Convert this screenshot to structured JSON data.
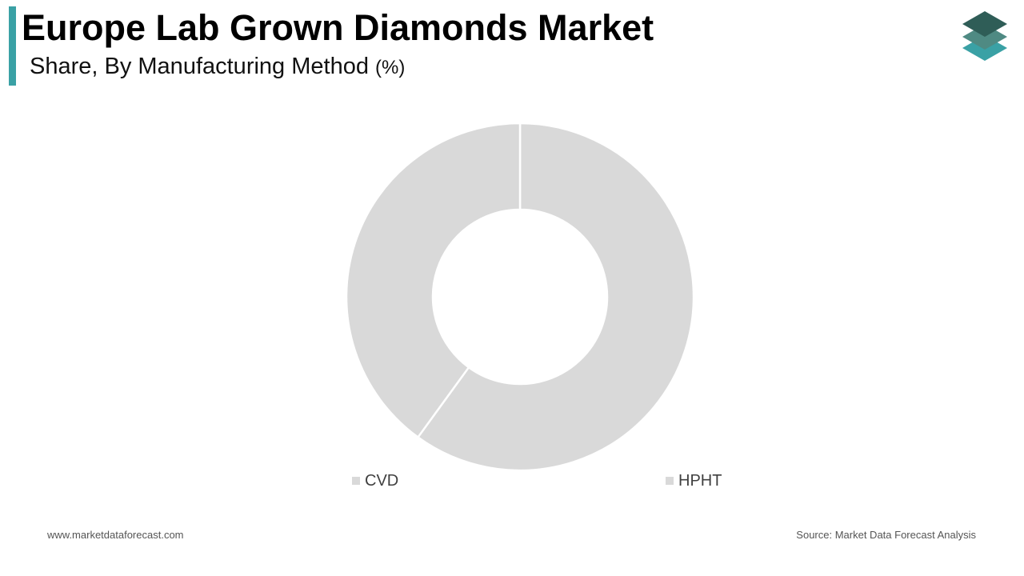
{
  "header": {
    "title": "Europe Lab Grown Diamonds Market",
    "subtitle": "Share, By Manufacturing Method",
    "subtitle_unit": "(%)",
    "accent_color": "#3aa1a5"
  },
  "logo": {
    "icon": "stacked-layers-logo-icon",
    "colors": [
      "#2f5d57",
      "#4f8a83",
      "#3aa1a5"
    ]
  },
  "chart_data": {
    "type": "donut",
    "categories": [
      "CVD",
      "HPHT"
    ],
    "values": [
      40,
      60
    ],
    "colors": [
      "#d9d9d9",
      "#d9d9d9"
    ],
    "legend_position": "bottom"
  },
  "footer": {
    "website": "www.marketdataforecast.com",
    "source": "Source: Market Data Forecast Analysis"
  }
}
